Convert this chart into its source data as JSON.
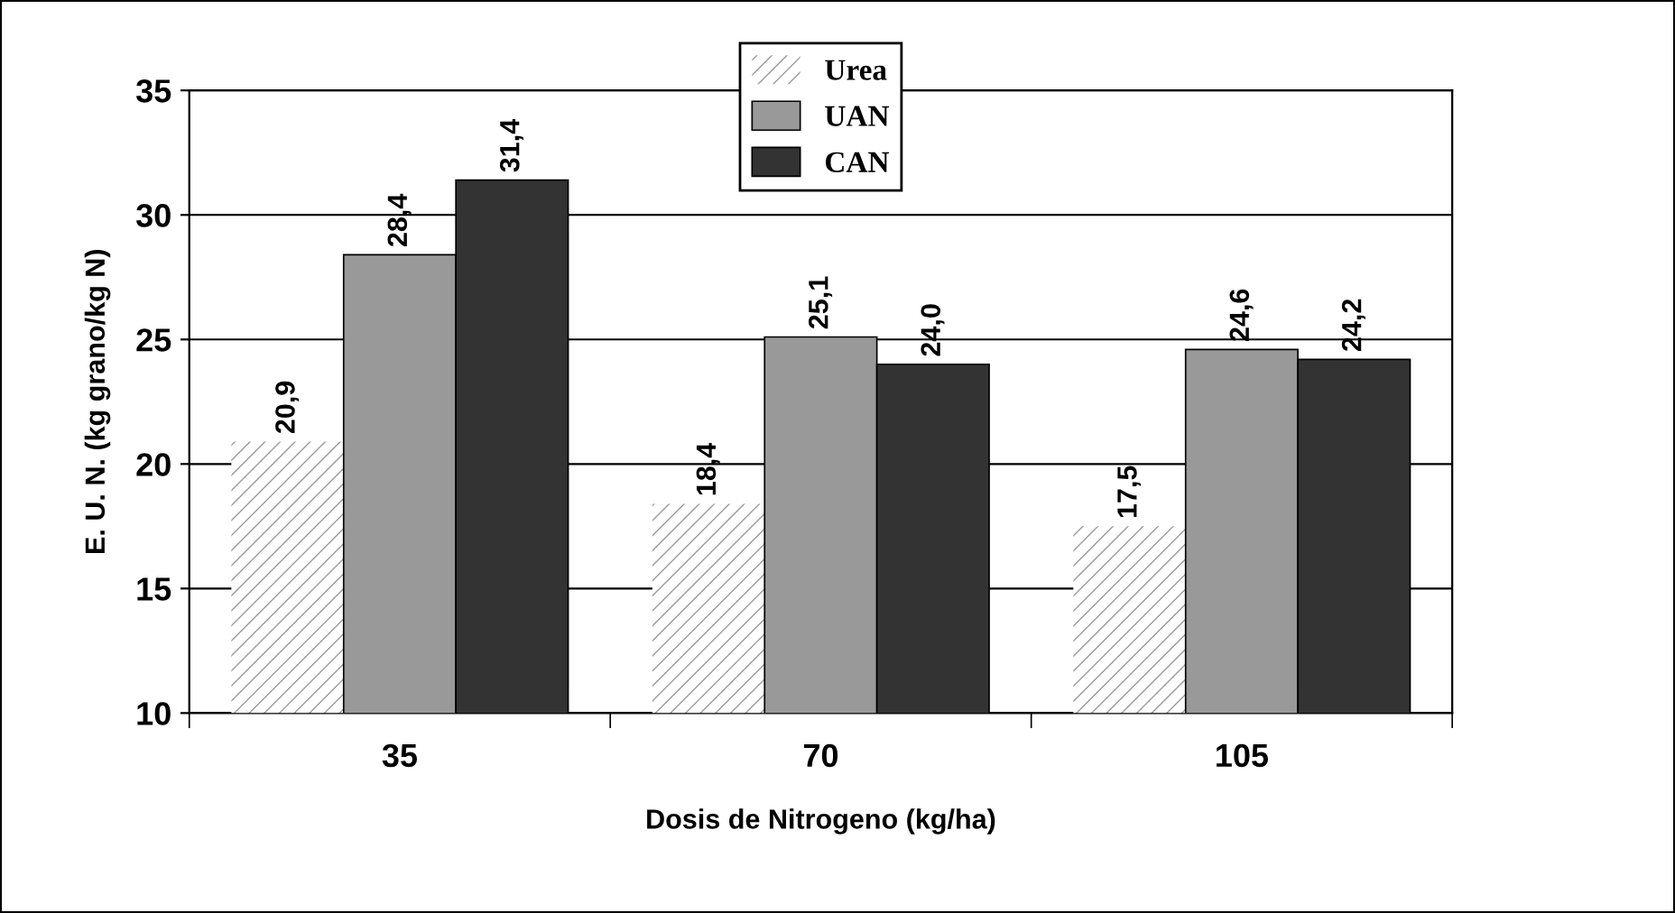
{
  "chart_data": {
    "type": "bar",
    "xlabel": "Dosis de Nitrogeno (kg/ha)",
    "ylabel": "E. U. N. (kg grano/kg N)",
    "categories": [
      "35",
      "70",
      "105"
    ],
    "series": [
      {
        "name": "Urea",
        "color": "#ffffff",
        "values": [
          20.9,
          18.4,
          17.5
        ],
        "value_labels": [
          "20,9",
          "18,4",
          "17,5"
        ]
      },
      {
        "name": "UAN",
        "color": "#999999",
        "values": [
          28.4,
          25.1,
          24.6
        ],
        "value_labels": [
          "28,4",
          "25,1",
          "24,6"
        ]
      },
      {
        "name": "CAN",
        "color": "#333333",
        "values": [
          31.4,
          24.0,
          24.2
        ],
        "value_labels": [
          "31,4",
          "24,0",
          "24,2"
        ]
      }
    ],
    "ylim": [
      10,
      35
    ],
    "yticks": [
      10,
      15,
      20,
      25,
      30,
      35
    ],
    "grid": "y",
    "legend": "top"
  }
}
